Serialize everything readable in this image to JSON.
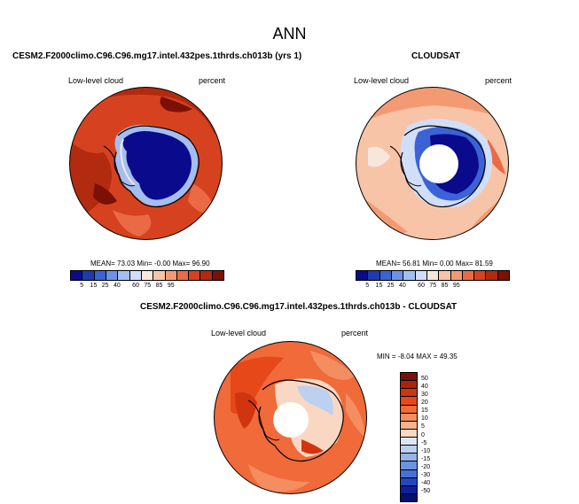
{
  "title": "ANN",
  "panels": {
    "model": {
      "title": "CESM2.F2000climo.C96.C96.mg17.intel.432pes.1thrds.ch013b (yrs 1)",
      "left_label": "Low-level cloud",
      "right_label": "percent",
      "stats": "MEAN= 73.03  Min= -0.00  Max= 96.90"
    },
    "obs": {
      "title": "CLOUDSAT",
      "left_label": "Low-level cloud",
      "right_label": "percent",
      "stats": "MEAN= 56.81  Min=  0.00  Max= 81.59"
    },
    "diff": {
      "title": "CESM2.F2000climo.C96.C96.mg17.intel.432pes.1thrds.ch013b - CLOUDSAT",
      "left_label": "Low-level cloud",
      "right_label": "percent",
      "stats": "MIN = -8.04 MAX = 49.35"
    }
  },
  "colorbar_main": {
    "ticks": [
      "5",
      "15",
      "25",
      "40",
      "60",
      "75",
      "85",
      "95"
    ],
    "colors": [
      "#0a0a8c",
      "#1d3ab3",
      "#3b63d6",
      "#6d92e8",
      "#a3bff2",
      "#d1def7",
      "#f7e6dc",
      "#f8c4a8",
      "#f49a72",
      "#ea6a45",
      "#d6421f",
      "#b22a0f",
      "#7d1005"
    ]
  },
  "colorbar_diff": {
    "ticks": [
      "50",
      "40",
      "30",
      "20",
      "15",
      "10",
      "5",
      "0",
      "-5",
      "-10",
      "-15",
      "-20",
      "-30",
      "-40",
      "-50"
    ],
    "colors": [
      "#7d1005",
      "#b02208",
      "#d03510",
      "#e6481a",
      "#f06a3a",
      "#f48d60",
      "#f8b28c",
      "#fad7c2",
      "#dde6f5",
      "#bdd0f0",
      "#97b5ea",
      "#6d92e2",
      "#4671d6",
      "#2447c0",
      "#0e1f99",
      "#06106e"
    ]
  },
  "chart_data": [
    {
      "type": "heatmap",
      "title": "CESM2.F2000climo.C96.C96.mg17.intel.432pes.1thrds.ch013b (yrs 1)",
      "variable": "Low-level cloud",
      "units": "percent",
      "projection": "south polar stereographic",
      "mean": 73.03,
      "min": -0.0,
      "max": 96.9,
      "levels": [
        5,
        10,
        15,
        20,
        25,
        30,
        40,
        50,
        60,
        70,
        75,
        80,
        85,
        90,
        95
      ]
    },
    {
      "type": "heatmap",
      "title": "CLOUDSAT",
      "variable": "Low-level cloud",
      "units": "percent",
      "projection": "south polar stereographic",
      "mean": 56.81,
      "min": 0.0,
      "max": 81.59,
      "levels": [
        5,
        10,
        15,
        20,
        25,
        30,
        40,
        50,
        60,
        70,
        75,
        80,
        85,
        90,
        95
      ]
    },
    {
      "type": "heatmap",
      "title": "CESM2.F2000climo.C96.C96.mg17.intel.432pes.1thrds.ch013b - CLOUDSAT",
      "variable": "Low-level cloud",
      "units": "percent",
      "projection": "south polar stereographic",
      "min": -8.04,
      "max": 49.35,
      "levels": [
        -50,
        -40,
        -30,
        -20,
        -15,
        -10,
        -5,
        0,
        5,
        10,
        15,
        20,
        30,
        40,
        50
      ]
    }
  ]
}
